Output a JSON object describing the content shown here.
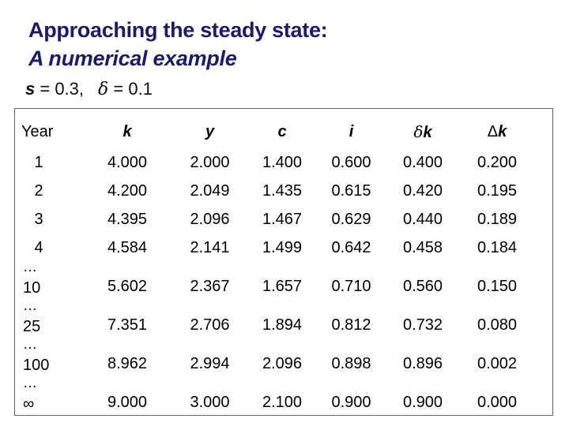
{
  "slide": {
    "title_line1": "Approaching the steady state:",
    "title_line2": "A numerical example",
    "title_color": "#1a1a70",
    "background_color": "#ffffff"
  },
  "assumptions": {
    "s_symbol": "s",
    "s_rest": " = 0.3,",
    "delta_symbol": "δ",
    "delta_rest": " = 0.1"
  },
  "table": {
    "border_color": "#666666",
    "ellipsis": "…",
    "header": {
      "year": "Year",
      "vars": [
        "k",
        "y",
        "c",
        "i"
      ],
      "delta_k": {
        "symbol": "δ",
        "var": "k"
      },
      "cap_delta_k": {
        "symbol": "Δ",
        "var": "k"
      }
    },
    "rows": [
      {
        "year": "1",
        "values": [
          "4.000",
          "2.000",
          "1.400",
          "0.600",
          "0.400",
          "0.200"
        ]
      },
      {
        "year": "2",
        "values": [
          "4.200",
          "2.049",
          "1.435",
          "0.615",
          "0.420",
          "0.195"
        ]
      },
      {
        "year": "3",
        "values": [
          "4.395",
          "2.096",
          "1.467",
          "0.629",
          "0.440",
          "0.189"
        ]
      },
      {
        "year": "4",
        "values": [
          "4.584",
          "2.141",
          "1.499",
          "0.642",
          "0.458",
          "0.184"
        ]
      },
      {
        "year": "10",
        "values": [
          "5.602",
          "2.367",
          "1.657",
          "0.710",
          "0.560",
          "0.150"
        ]
      },
      {
        "year": "25",
        "values": [
          "7.351",
          "2.706",
          "1.894",
          "0.812",
          "0.732",
          "0.080"
        ]
      },
      {
        "year": "100",
        "values": [
          "8.962",
          "2.994",
          "2.096",
          "0.898",
          "0.896",
          "0.002"
        ]
      },
      {
        "year": "∞",
        "values": [
          "9.000",
          "3.000",
          "2.100",
          "0.900",
          "0.900",
          "0.000"
        ]
      }
    ]
  },
  "chart_data": {
    "type": "table",
    "title": "Approaching the steady state: A numerical example",
    "parameters": {
      "s": 0.3,
      "delta": 0.1
    },
    "columns": [
      "Year",
      "k",
      "y",
      "c",
      "i",
      "δk",
      "Δk"
    ],
    "rows": [
      [
        "1",
        4.0,
        2.0,
        1.4,
        0.6,
        0.4,
        0.2
      ],
      [
        "2",
        4.2,
        2.049,
        1.435,
        0.615,
        0.42,
        0.195
      ],
      [
        "3",
        4.395,
        2.096,
        1.467,
        0.629,
        0.44,
        0.189
      ],
      [
        "4",
        4.584,
        2.141,
        1.499,
        0.642,
        0.458,
        0.184
      ],
      [
        "10",
        5.602,
        2.367,
        1.657,
        0.71,
        0.56,
        0.15
      ],
      [
        "25",
        7.351,
        2.706,
        1.894,
        0.812,
        0.732,
        0.08
      ],
      [
        "100",
        8.962,
        2.994,
        2.096,
        0.898,
        0.896,
        0.002
      ],
      [
        "∞",
        9.0,
        3.0,
        2.1,
        0.9,
        0.9,
        0.0
      ]
    ]
  }
}
